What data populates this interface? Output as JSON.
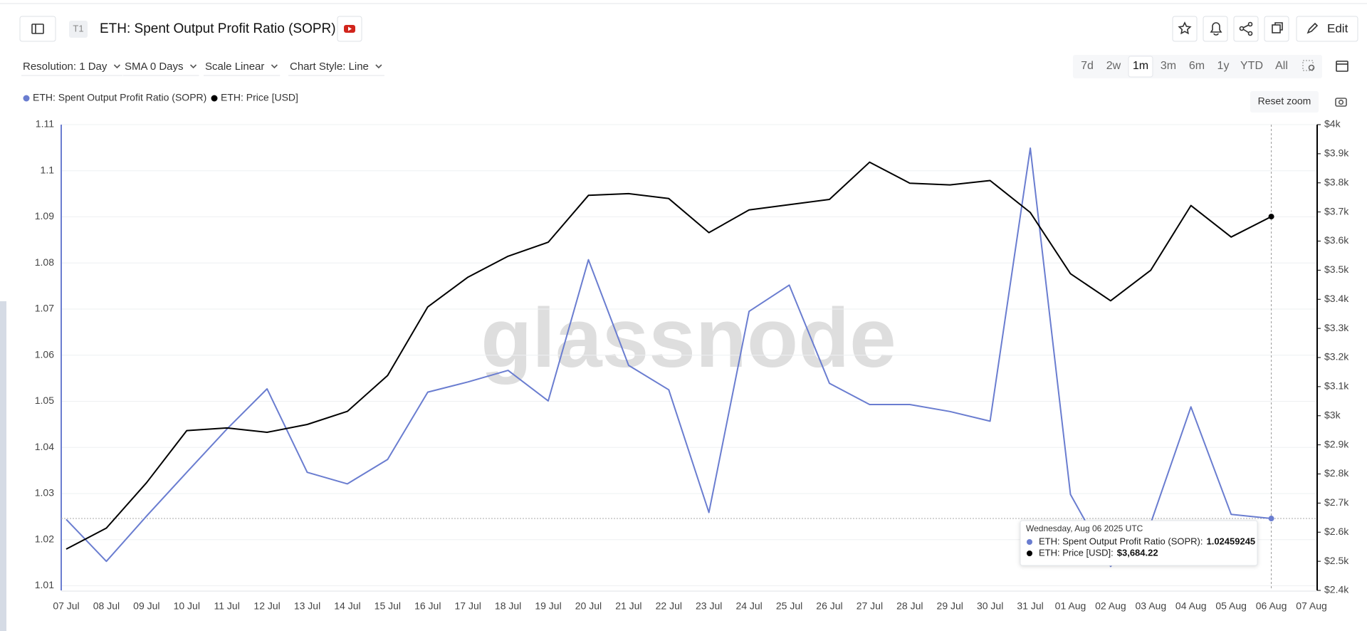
{
  "header": {
    "badge": "T1",
    "title": "ETH: Spent Output Profit Ratio (SOPR)",
    "edit": "Edit"
  },
  "toolbar": {
    "dropdowns": [
      "Resolution: 1 Day",
      "SMA 0 Days",
      "Scale Linear",
      "Chart Style: Line"
    ],
    "ranges": [
      "7d",
      "2w",
      "1m",
      "3m",
      "6m",
      "1y",
      "YTD",
      "All"
    ],
    "active_range": "1m",
    "reset_zoom": "Reset zoom"
  },
  "chart_data": {
    "type": "line",
    "watermark": "glassnode",
    "categories": [
      "07 Jul",
      "08 Jul",
      "09 Jul",
      "10 Jul",
      "11 Jul",
      "12 Jul",
      "13 Jul",
      "14 Jul",
      "15 Jul",
      "16 Jul",
      "17 Jul",
      "18 Jul",
      "19 Jul",
      "20 Jul",
      "21 Jul",
      "22 Jul",
      "23 Jul",
      "24 Jul",
      "25 Jul",
      "26 Jul",
      "27 Jul",
      "28 Jul",
      "29 Jul",
      "30 Jul",
      "31 Jul",
      "01 Aug",
      "02 Aug",
      "03 Aug",
      "04 Aug",
      "05 Aug",
      "06 Aug",
      "07 Aug"
    ],
    "series": [
      {
        "name": "ETH: Spent Output Profit Ratio (SOPR)",
        "color": "#6a7dd0",
        "values": [
          1.0244,
          1.0153,
          1.0251,
          1.0346,
          1.044,
          1.0527,
          1.0346,
          1.0321,
          1.0374,
          1.052,
          1.0542,
          1.0567,
          1.0501,
          1.0807,
          1.0578,
          1.0525,
          1.0259,
          1.0695,
          1.0752,
          1.0539,
          1.0493,
          1.0493,
          1.0478,
          1.0457,
          1.1049,
          1.0298,
          1.0142,
          1.0236,
          1.0488,
          1.0255,
          1.02459245,
          null
        ]
      },
      {
        "name": "ETH: Price [USD]",
        "color": "#000000",
        "axis": "y2",
        "values": [
          2542,
          2614,
          2770,
          2949,
          2958,
          2943,
          2970,
          3015,
          3138,
          3374,
          3476,
          3548,
          3596,
          3757,
          3763,
          3746,
          3629,
          3707,
          3725,
          3743,
          3871,
          3799,
          3793,
          3808,
          3698,
          3488,
          3395,
          3500,
          3722,
          3614,
          3684.22,
          null
        ]
      }
    ],
    "ylim": [
      1.009,
      1.11
    ],
    "yticks": [
      1.01,
      1.02,
      1.03,
      1.04,
      1.05,
      1.06,
      1.07,
      1.08,
      1.09,
      1.1,
      1.11
    ],
    "y2lim": [
      2400,
      4000
    ],
    "y2ticks": [
      {
        "value": 2400,
        "label": "$2.4k"
      },
      {
        "value": 2500,
        "label": "$2.5k"
      },
      {
        "value": 2600,
        "label": "$2.6k"
      },
      {
        "value": 2700,
        "label": "$2.7k"
      },
      {
        "value": 2800,
        "label": "$2.8k"
      },
      {
        "value": 2900,
        "label": "$2.9k"
      },
      {
        "value": 3000,
        "label": "$3k"
      },
      {
        "value": 3100,
        "label": "$3.1k"
      },
      {
        "value": 3200,
        "label": "$3.2k"
      },
      {
        "value": 3300,
        "label": "$3.3k"
      },
      {
        "value": 3400,
        "label": "$3.4k"
      },
      {
        "value": 3500,
        "label": "$3.5k"
      },
      {
        "value": 3600,
        "label": "$3.6k"
      },
      {
        "value": 3700,
        "label": "$3.7k"
      },
      {
        "value": 3800,
        "label": "$3.8k"
      },
      {
        "value": 3900,
        "label": "$3.9k"
      },
      {
        "value": 4000,
        "label": "$4k"
      }
    ],
    "grid": true,
    "tooltip": {
      "date": "Wednesday, Aug 06 2025 UTC",
      "index": 30,
      "lines": [
        {
          "label": "ETH: Spent Output Profit Ratio (SOPR):",
          "value": "1.02459245"
        },
        {
          "label": "ETH: Price [USD]:",
          "value": "$3,684.22"
        }
      ]
    }
  }
}
